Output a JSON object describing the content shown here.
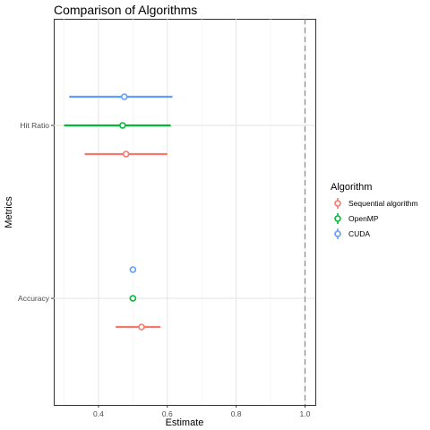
{
  "chart_data": {
    "type": "forest",
    "title": "Comparison of Algorithms",
    "xlabel": "Estimate",
    "ylabel": "Metrics",
    "xlim": [
      0.27,
      1.03
    ],
    "x_ticks": [
      0.4,
      0.6,
      0.8,
      1.0
    ],
    "x_tick_labels": [
      "0.4",
      "0.6",
      "0.8",
      "1.0"
    ],
    "categories": [
      "Hit Ratio",
      "Accuracy"
    ],
    "reference_line": {
      "x": 1.0,
      "style": "dashed"
    },
    "grid": true,
    "legend": {
      "title": "Algorithm",
      "position": "right"
    },
    "series": [
      {
        "name": "Sequential algorithm",
        "color": "#F8766D",
        "points": [
          {
            "category": "Hit Ratio",
            "estimate": 0.48,
            "lower": 0.36,
            "upper": 0.6
          },
          {
            "category": "Accuracy",
            "estimate": 0.525,
            "lower": 0.45,
            "upper": 0.58
          }
        ]
      },
      {
        "name": "OpenMP",
        "color": "#00BA38",
        "points": [
          {
            "category": "Hit Ratio",
            "estimate": 0.47,
            "lower": 0.3,
            "upper": 0.61
          },
          {
            "category": "Accuracy",
            "estimate": 0.5,
            "lower": 0.49,
            "upper": 0.505
          }
        ]
      },
      {
        "name": "CUDA",
        "color": "#619CFF",
        "points": [
          {
            "category": "Hit Ratio",
            "estimate": 0.475,
            "lower": 0.315,
            "upper": 0.615
          },
          {
            "category": "Accuracy",
            "estimate": 0.5,
            "lower": 0.498,
            "upper": 0.502
          }
        ]
      }
    ]
  }
}
